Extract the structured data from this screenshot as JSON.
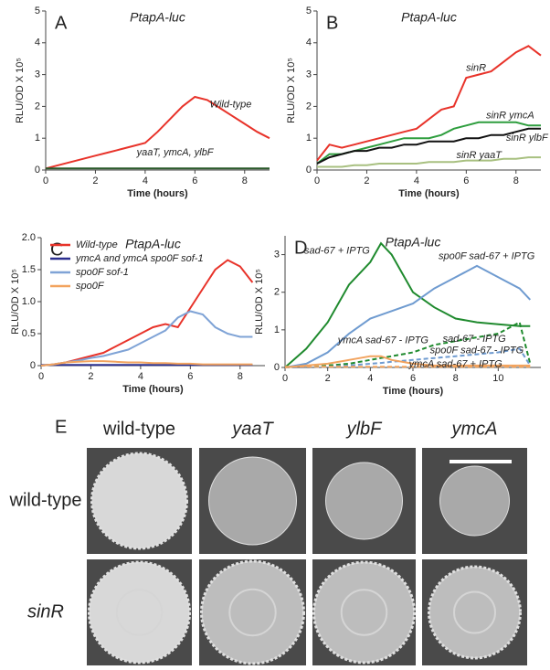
{
  "chart_data": [
    {
      "type": "line",
      "panel": "A",
      "title": "PtapA-luc",
      "ylabel": "RLU/OD X 10⁵",
      "xlabel": "Time (hours)",
      "xlim": [
        0,
        9
      ],
      "xticks": [
        0,
        2,
        4,
        6,
        8
      ],
      "ylim": [
        0,
        5
      ],
      "yticks": [
        0,
        1,
        2,
        3,
        4,
        5
      ],
      "x": [
        0,
        0.5,
        1,
        1.5,
        2,
        2.5,
        3,
        3.5,
        4,
        4.5,
        5,
        5.5,
        6,
        6.5,
        7,
        7.5,
        8,
        8.5,
        9
      ],
      "series": [
        {
          "name": "Wild-type",
          "color": "#e8332a",
          "values": [
            0.05,
            0.15,
            0.25,
            0.35,
            0.45,
            0.55,
            0.65,
            0.75,
            0.85,
            1.2,
            1.6,
            2.0,
            2.3,
            2.2,
            1.95,
            1.7,
            1.45,
            1.2,
            1.0
          ]
        },
        {
          "name": "yaaT, ymcA, ylbF",
          "color": "#2a5a2a",
          "values": [
            0.05,
            0.05,
            0.05,
            0.05,
            0.05,
            0.05,
            0.05,
            0.05,
            0.05,
            0.05,
            0.05,
            0.05,
            0.05,
            0.05,
            0.05,
            0.05,
            0.05,
            0.05,
            0.05
          ]
        }
      ]
    },
    {
      "type": "line",
      "panel": "B",
      "title": "PtapA-luc",
      "ylabel": "RLU/OD X 10⁵",
      "xlabel": "Time (hours)",
      "xlim": [
        0,
        9
      ],
      "xticks": [
        0,
        2,
        4,
        6,
        8
      ],
      "ylim": [
        0,
        5
      ],
      "yticks": [
        0,
        1,
        2,
        3,
        4,
        5
      ],
      "x": [
        0,
        0.5,
        1,
        1.5,
        2,
        2.5,
        3,
        3.5,
        4,
        4.5,
        5,
        5.5,
        6,
        6.5,
        7,
        7.5,
        8,
        8.5,
        9
      ],
      "series": [
        {
          "name": "sinR",
          "color": "#e8332a",
          "values": [
            0.3,
            0.8,
            0.7,
            0.8,
            0.9,
            1.0,
            1.1,
            1.2,
            1.3,
            1.6,
            1.9,
            2.0,
            2.9,
            3.0,
            3.1,
            3.4,
            3.7,
            3.9,
            3.6
          ]
        },
        {
          "name": "sinR ymcA",
          "color": "#2e9e3e",
          "values": [
            0.2,
            0.5,
            0.5,
            0.6,
            0.7,
            0.8,
            0.9,
            1.0,
            1.0,
            1.0,
            1.1,
            1.3,
            1.4,
            1.5,
            1.5,
            1.5,
            1.5,
            1.4,
            1.4
          ]
        },
        {
          "name": "sinR ylbF",
          "color": "#111111",
          "values": [
            0.2,
            0.4,
            0.5,
            0.6,
            0.6,
            0.7,
            0.7,
            0.8,
            0.8,
            0.9,
            0.9,
            0.9,
            1.0,
            1.0,
            1.1,
            1.1,
            1.2,
            1.3,
            1.3
          ]
        },
        {
          "name": "sinR yaaT",
          "color": "#a8c080",
          "values": [
            0.1,
            0.1,
            0.1,
            0.15,
            0.15,
            0.2,
            0.2,
            0.2,
            0.2,
            0.25,
            0.25,
            0.25,
            0.3,
            0.3,
            0.3,
            0.35,
            0.35,
            0.4,
            0.4
          ]
        }
      ]
    },
    {
      "type": "line",
      "panel": "C",
      "title": "PtapA-luc",
      "ylabel": "RLU/OD X 10⁵",
      "xlabel": "Time (hours)",
      "legend": "upper left",
      "xlim": [
        0,
        9
      ],
      "xticks": [
        0,
        2,
        4,
        6,
        8
      ],
      "ylim": [
        0,
        2
      ],
      "yticks": [
        0,
        0.5,
        {
          "value": 1,
          "label": "1.0"
        },
        1.5,
        {
          "value": 2,
          "label": "2.0"
        }
      ],
      "x": [
        0,
        0.5,
        1,
        1.5,
        2,
        2.5,
        3,
        3.5,
        4,
        4.5,
        5,
        5.5,
        6,
        6.5,
        7,
        7.5,
        8,
        8.5
      ],
      "series": [
        {
          "name": "Wild-type",
          "color": "#e8332a",
          "values": [
            0,
            0.02,
            0.05,
            0.1,
            0.15,
            0.2,
            0.3,
            0.4,
            0.5,
            0.6,
            0.65,
            0.6,
            0.9,
            1.2,
            1.5,
            1.65,
            1.55,
            1.3
          ]
        },
        {
          "name": "ymcA and ymcA spo0F sof-1",
          "color": "#2b2f8f",
          "values": [
            0.01,
            0.01,
            0.01,
            0.01,
            0.01,
            0.01,
            0.01,
            0.01,
            0.01,
            0.01,
            0.01,
            0.01,
            0.01,
            0.01,
            0.01,
            0.01,
            0.01,
            0.01
          ]
        },
        {
          "name": "spo0F sof-1",
          "color": "#7fa3d6",
          "values": [
            0,
            0.02,
            0.05,
            0.08,
            0.12,
            0.15,
            0.2,
            0.25,
            0.35,
            0.45,
            0.55,
            0.75,
            0.85,
            0.8,
            0.6,
            0.5,
            0.45,
            0.45
          ]
        },
        {
          "name": "spo0F",
          "color": "#f2a35e",
          "values": [
            0,
            0.02,
            0.05,
            0.06,
            0.07,
            0.07,
            0.06,
            0.05,
            0.05,
            0.04,
            0.04,
            0.03,
            0.03,
            0.02,
            0.02,
            0.02,
            0.02,
            0.02
          ]
        }
      ]
    },
    {
      "type": "line",
      "panel": "D",
      "title": "PtapA-luc",
      "ylabel": "RLU/OD X 10⁵",
      "xlabel": "Time (hours)",
      "xlim": [
        0,
        12
      ],
      "xticks": [
        0,
        2,
        4,
        6,
        8,
        10
      ],
      "ylim": [
        0,
        3.5
      ],
      "yticks": [
        0,
        1,
        2,
        3
      ],
      "x": [
        0,
        1,
        2,
        3,
        4,
        4.5,
        5,
        6,
        7,
        8,
        9,
        10,
        11,
        11.5
      ],
      "series": [
        {
          "name": "sad-67 + IPTG",
          "color": "#1f8a2e",
          "dashed": false,
          "values": [
            0,
            0.5,
            1.2,
            2.2,
            2.8,
            3.3,
            3.0,
            2.0,
            1.6,
            1.3,
            1.2,
            1.15,
            1.1,
            1.1
          ]
        },
        {
          "name": "spo0F sad-67 + IPTG",
          "color": "#6f9bd0",
          "dashed": false,
          "values": [
            0,
            0.1,
            0.4,
            0.9,
            1.3,
            1.4,
            1.5,
            1.7,
            2.1,
            2.4,
            2.7,
            2.4,
            2.1,
            1.8
          ]
        },
        {
          "name": "sad-67 - IPTG",
          "color": "#1f8a2e",
          "dashed": true,
          "values": [
            0,
            0,
            0.05,
            0.1,
            0.2,
            0.25,
            0.3,
            0.4,
            0.6,
            0.7,
            0.8,
            0.9,
            1.2,
            0.1
          ]
        },
        {
          "name": "spo0F  sad-67 - IPTG",
          "color": "#6f9bd0",
          "dashed": true,
          "values": [
            0,
            0,
            0.02,
            0.05,
            0.1,
            0.12,
            0.15,
            0.2,
            0.25,
            0.3,
            0.35,
            0.4,
            0.5,
            0.05
          ]
        },
        {
          "name": "ymcA sad-67 - IPTG",
          "color": "#f2a35e",
          "dashed": false,
          "values": [
            0,
            0.05,
            0.1,
            0.2,
            0.3,
            0.3,
            0.2,
            0.1,
            0.05,
            0.05,
            0.05,
            0.05,
            0.05,
            0.05
          ]
        },
        {
          "name": "ymcA sad-67 + IPTG",
          "color": "#f2a35e",
          "dashed": true,
          "values": [
            0.02,
            0.02,
            0.02,
            0.02,
            0.02,
            0.02,
            0.02,
            0.02,
            0.02,
            0.02,
            0.02,
            0.02,
            0.02,
            0.02
          ]
        }
      ]
    }
  ],
  "panel_e": {
    "label": "E",
    "columns": [
      "wild-type",
      "yaaT",
      "ylbF",
      "ymcA"
    ],
    "rows": [
      "wild-type",
      "sinR"
    ]
  }
}
